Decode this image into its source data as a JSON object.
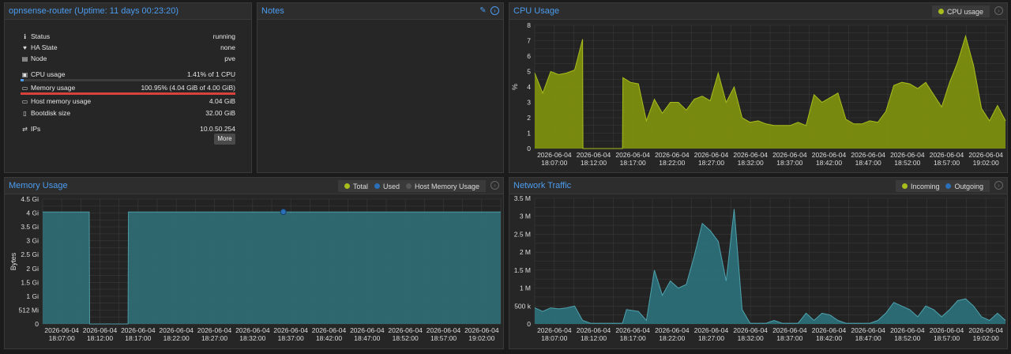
{
  "summary": {
    "title": "opnsense-router (Uptime: 11 days 00:23:20)",
    "rows": [
      {
        "label": "Status",
        "value": "running",
        "icon": "info-icon"
      },
      {
        "label": "HA State",
        "value": "none",
        "icon": "heartbeat-icon"
      },
      {
        "label": "Node",
        "value": "pve",
        "icon": "server-icon"
      },
      {
        "label": "CPU usage",
        "value": "1.41% of 1 CPU",
        "icon": "cpu-icon",
        "bar": 0.0141,
        "bar_color": "#4b9cf0"
      },
      {
        "label": "Memory usage",
        "value": "100.95% (4.04 GiB of 4.00 GiB)",
        "icon": "memory-icon",
        "bar": 1.0,
        "bar_color": "#d9413c"
      },
      {
        "label": "Host memory usage",
        "value": "4.04 GiB",
        "icon": "memory-icon"
      },
      {
        "label": "Bootdisk size",
        "value": "32.00 GiB",
        "icon": "disk-icon"
      },
      {
        "label": "IPs",
        "value": "10.0.50.254",
        "icon": "network-icon"
      }
    ],
    "more_label": "More"
  },
  "notes": {
    "title": "Notes"
  },
  "cpu": {
    "title": "CPU Usage",
    "legend": [
      "CPU usage"
    ]
  },
  "memory": {
    "title": "Memory Usage",
    "legend": [
      "Total",
      "Used",
      "Host Memory Usage"
    ]
  },
  "network": {
    "title": "Network Traffic",
    "legend": [
      "Incoming",
      "Outgoing"
    ]
  },
  "colors": {
    "accent": "#4b9cf0",
    "cpu_fill": "#7d8f0f",
    "cpu_line": "#a8bd1c",
    "mem_fill": "#2f6b73",
    "mem_line": "#4d9aa4",
    "used": "#2a6fb8",
    "host": "#555555",
    "net_fill": "#2c6e78",
    "net_line": "#4fa3ae"
  },
  "chart_data": [
    {
      "name": "cpu",
      "type": "area",
      "ylabel": "%",
      "ylim": [
        0,
        8
      ],
      "yticks": [
        "0",
        "1",
        "2",
        "3",
        "4",
        "5",
        "6",
        "7",
        "8"
      ],
      "xticks": [
        [
          "2026-06-04",
          "18:07:00"
        ],
        [
          "2026-06-04",
          "18:12:00"
        ],
        [
          "2026-06-04",
          "18:17:00"
        ],
        [
          "2026-06-04",
          "18:22:00"
        ],
        [
          "2026-06-04",
          "18:27:00"
        ],
        [
          "2026-06-04",
          "18:32:00"
        ],
        [
          "2026-06-04",
          "18:37:00"
        ],
        [
          "2026-06-04",
          "18:42:00"
        ],
        [
          "2026-06-04",
          "18:47:00"
        ],
        [
          "2026-06-04",
          "18:52:00"
        ],
        [
          "2026-06-04",
          "18:57:00"
        ],
        [
          "2026-06-04",
          "19:02:00"
        ]
      ],
      "xrange": [
        0,
        59
      ],
      "series": [
        {
          "name": "CPU usage",
          "points": [
            [
              0,
              4.9
            ],
            [
              1,
              3.6
            ],
            [
              2,
              5.0
            ],
            [
              3,
              4.8
            ],
            [
              4,
              4.9
            ],
            [
              5,
              5.1
            ],
            [
              6,
              7.1
            ],
            [
              6.05,
              0
            ],
            [
              11,
              0
            ],
            [
              11.05,
              4.6
            ],
            [
              12,
              4.3
            ],
            [
              13,
              4.2
            ],
            [
              14,
              1.8
            ],
            [
              15,
              3.2
            ],
            [
              16,
              2.3
            ],
            [
              17,
              3.0
            ],
            [
              18,
              3.0
            ],
            [
              19,
              2.5
            ],
            [
              20,
              3.2
            ],
            [
              21,
              3.4
            ],
            [
              22,
              3.1
            ],
            [
              23,
              4.9
            ],
            [
              24,
              3.0
            ],
            [
              25,
              4.0
            ],
            [
              26,
              2.0
            ],
            [
              27,
              1.7
            ],
            [
              28,
              1.8
            ],
            [
              29,
              1.6
            ],
            [
              30,
              1.5
            ],
            [
              31,
              1.5
            ],
            [
              32,
              1.5
            ],
            [
              33,
              1.7
            ],
            [
              34,
              1.5
            ],
            [
              35,
              3.5
            ],
            [
              36,
              3.0
            ],
            [
              37,
              3.3
            ],
            [
              38,
              3.6
            ],
            [
              39,
              1.9
            ],
            [
              40,
              1.6
            ],
            [
              41,
              1.6
            ],
            [
              42,
              1.8
            ],
            [
              43,
              1.7
            ],
            [
              44,
              2.4
            ],
            [
              45,
              4.1
            ],
            [
              46,
              4.3
            ],
            [
              47,
              4.2
            ],
            [
              48,
              3.9
            ],
            [
              49,
              4.3
            ],
            [
              50,
              3.5
            ],
            [
              51,
              2.7
            ],
            [
              52,
              4.3
            ],
            [
              53,
              5.6
            ],
            [
              54,
              7.3
            ],
            [
              55,
              5.4
            ],
            [
              56,
              2.6
            ],
            [
              57,
              1.8
            ],
            [
              58,
              2.8
            ],
            [
              59,
              1.8
            ]
          ]
        }
      ]
    },
    {
      "name": "memory",
      "type": "area",
      "ylabel": "Bytes",
      "ylim": [
        0,
        4.5
      ],
      "yticks": [
        "0",
        "512 Mi",
        "1 Gi",
        "1.5 Gi",
        "2 Gi",
        "2.5 Gi",
        "3 Gi",
        "3.5 Gi",
        "4 Gi",
        "4.5 Gi"
      ],
      "xticks": [
        [
          "2026-06-04",
          "18:07:00"
        ],
        [
          "2026-06-04",
          "18:12:00"
        ],
        [
          "2026-06-04",
          "18:17:00"
        ],
        [
          "2026-06-04",
          "18:22:00"
        ],
        [
          "2026-06-04",
          "18:27:00"
        ],
        [
          "2026-06-04",
          "18:32:00"
        ],
        [
          "2026-06-04",
          "18:37:00"
        ],
        [
          "2026-06-04",
          "18:42:00"
        ],
        [
          "2026-06-04",
          "18:47:00"
        ],
        [
          "2026-06-04",
          "18:52:00"
        ],
        [
          "2026-06-04",
          "18:57:00"
        ],
        [
          "2026-06-04",
          "19:02:00"
        ]
      ],
      "xrange": [
        0,
        59
      ],
      "series": [
        {
          "name": "Total",
          "points": [
            [
              0,
              4.04
            ],
            [
              6,
              4.04
            ],
            [
              6.05,
              0
            ],
            [
              11,
              0
            ],
            [
              11.05,
              4.04
            ],
            [
              59,
              4.04
            ]
          ]
        }
      ],
      "marker": [
        31,
        4.04
      ]
    },
    {
      "name": "network",
      "type": "area",
      "ylim": [
        0,
        3.5
      ],
      "yticks": [
        "0",
        "500 k",
        "1 M",
        "1.5 M",
        "2 M",
        "2.5 M",
        "3 M",
        "3.5 M"
      ],
      "xticks": [
        [
          "2026-06-04",
          "18:07:00"
        ],
        [
          "2026-06-04",
          "18:12:00"
        ],
        [
          "2026-06-04",
          "18:17:00"
        ],
        [
          "2026-06-04",
          "18:22:00"
        ],
        [
          "2026-06-04",
          "18:27:00"
        ],
        [
          "2026-06-04",
          "18:32:00"
        ],
        [
          "2026-06-04",
          "18:37:00"
        ],
        [
          "2026-06-04",
          "18:42:00"
        ],
        [
          "2026-06-04",
          "18:47:00"
        ],
        [
          "2026-06-04",
          "18:52:00"
        ],
        [
          "2026-06-04",
          "18:57:00"
        ],
        [
          "2026-06-04",
          "19:02:00"
        ]
      ],
      "xrange": [
        0,
        59
      ],
      "series": [
        {
          "name": "Incoming",
          "points": [
            [
              0,
              0.45
            ],
            [
              1,
              0.35
            ],
            [
              2,
              0.45
            ],
            [
              3,
              0.42
            ],
            [
              4,
              0.45
            ],
            [
              5,
              0.5
            ],
            [
              6,
              0.1
            ],
            [
              7,
              0.02
            ],
            [
              11,
              0.02
            ],
            [
              11.5,
              0.4
            ],
            [
              13,
              0.35
            ],
            [
              14,
              0.1
            ],
            [
              15,
              1.5
            ],
            [
              16,
              0.8
            ],
            [
              17,
              1.2
            ],
            [
              18,
              1.0
            ],
            [
              19,
              1.1
            ],
            [
              20,
              1.9
            ],
            [
              21,
              2.8
            ],
            [
              22,
              2.6
            ],
            [
              23,
              2.3
            ],
            [
              24,
              1.2
            ],
            [
              25,
              3.2
            ],
            [
              26,
              0.4
            ],
            [
              27,
              0.02
            ],
            [
              29,
              0.02
            ],
            [
              30,
              0.1
            ],
            [
              31,
              0.02
            ],
            [
              33,
              0.02
            ],
            [
              34,
              0.3
            ],
            [
              35,
              0.1
            ],
            [
              36,
              0.3
            ],
            [
              37,
              0.25
            ],
            [
              38,
              0.1
            ],
            [
              39,
              0.02
            ],
            [
              42,
              0.02
            ],
            [
              43,
              0.1
            ],
            [
              44,
              0.3
            ],
            [
              45,
              0.6
            ],
            [
              46,
              0.5
            ],
            [
              47,
              0.4
            ],
            [
              48,
              0.2
            ],
            [
              49,
              0.5
            ],
            [
              50,
              0.4
            ],
            [
              51,
              0.2
            ],
            [
              52,
              0.4
            ],
            [
              53,
              0.65
            ],
            [
              54,
              0.7
            ],
            [
              55,
              0.5
            ],
            [
              56,
              0.2
            ],
            [
              57,
              0.1
            ],
            [
              58,
              0.3
            ],
            [
              59,
              0.1
            ]
          ]
        }
      ]
    }
  ]
}
